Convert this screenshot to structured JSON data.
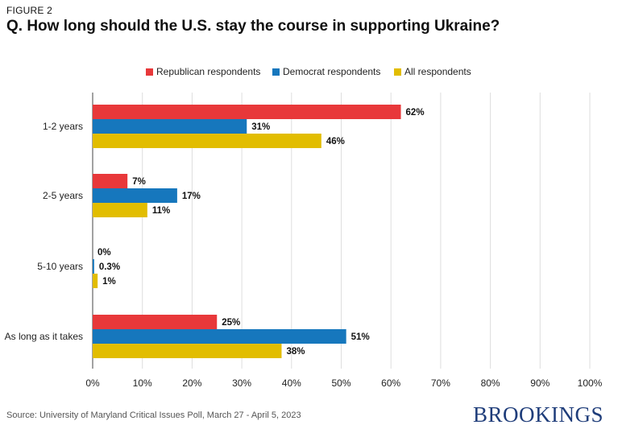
{
  "figure_label": "FIGURE 2",
  "title": "Q. How long should the U.S. stay the course in supporting Ukraine?",
  "source": "Source: University of Maryland Critical Issues Poll, March 27 - April 5, 2023",
  "logo_text": "BROOKINGS",
  "chart_data": {
    "type": "bar",
    "orientation": "horizontal",
    "categories": [
      "1-2 years",
      "2-5 years",
      "5-10 years",
      "As long as it takes"
    ],
    "series": [
      {
        "name": "Republican respondents",
        "color": "#e8383a",
        "values": [
          62,
          7,
          0,
          25
        ],
        "labels": [
          "62%",
          "7%",
          "0%",
          "25%"
        ]
      },
      {
        "name": "Democrat respondents",
        "color": "#1677bd",
        "values": [
          31,
          17,
          0.3,
          51
        ],
        "labels": [
          "31%",
          "17%",
          "0.3%",
          "51%"
        ]
      },
      {
        "name": "All respondents",
        "color": "#e2bd00",
        "values": [
          46,
          11,
          1,
          38
        ],
        "labels": [
          "46%",
          "11%",
          "1%",
          "38%"
        ]
      }
    ],
    "xlim": [
      0,
      100
    ],
    "xticks": [
      "0%",
      "10%",
      "20%",
      "30%",
      "40%",
      "50%",
      "60%",
      "70%",
      "80%",
      "90%",
      "100%"
    ],
    "grid": true,
    "legend_position": "top"
  }
}
